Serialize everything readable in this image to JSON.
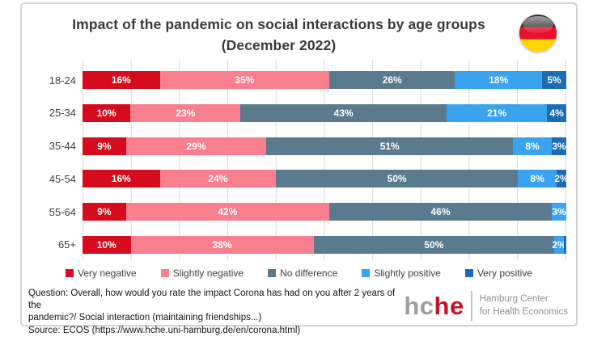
{
  "title": {
    "line1": "Impact of the pandemic on social interactions by age groups",
    "line2": "(December 2022)"
  },
  "flag": {
    "country": "Germany",
    "colors": {
      "black": "#2e2e2e",
      "red": "#e8112d",
      "gold": "#ffd500"
    }
  },
  "chart_data": {
    "type": "bar",
    "orientation": "horizontal",
    "stacked": true,
    "unit": "%",
    "x_range": [
      0,
      100
    ],
    "grid": "vertical gridlines every 10%",
    "legend_position": "bottom",
    "categories": [
      "18-24",
      "25-34",
      "35-44",
      "45-54",
      "55-64",
      "65+"
    ],
    "series": [
      {
        "name": "Very negative",
        "color": "#d60b1e",
        "values": [
          16,
          10,
          9,
          16,
          9,
          10
        ]
      },
      {
        "name": "Slightly negative",
        "color": "#f97f8e",
        "values": [
          35,
          23,
          29,
          24,
          42,
          38
        ]
      },
      {
        "name": "No difference",
        "color": "#5a7a8d",
        "values": [
          26,
          43,
          51,
          50,
          46,
          50
        ]
      },
      {
        "name": "Slightly positive",
        "color": "#3aa3ef",
        "values": [
          18,
          21,
          8,
          8,
          3,
          2
        ]
      },
      {
        "name": "Very positive",
        "color": "#1b6cb5",
        "values": [
          5,
          4,
          3,
          2,
          0,
          0.5
        ]
      }
    ],
    "data_labels": [
      [
        "16%",
        "35%",
        "26%",
        "18%",
        "5%"
      ],
      [
        "10%",
        "23%",
        "43%",
        "21%",
        "4%"
      ],
      [
        "9%",
        "29%",
        "51%",
        "8%",
        "3%"
      ],
      [
        "16%",
        "24%",
        "50%",
        "8%",
        "2%"
      ],
      [
        "9%",
        "42%",
        "46%",
        "3%",
        ""
      ],
      [
        "10%",
        "38%",
        "50%",
        "2%",
        ""
      ]
    ]
  },
  "legend": [
    {
      "label": "Very negative",
      "color": "#d60b1e"
    },
    {
      "label": "Slightly negative",
      "color": "#f97f8e"
    },
    {
      "label": "No difference",
      "color": "#5a7a8d"
    },
    {
      "label": "Slightly positive",
      "color": "#3aa3ef"
    },
    {
      "label": "Very positive",
      "color": "#1b6cb5"
    }
  ],
  "footer": {
    "question_line1": "Question: Overall, how would you rate the impact Corona has had on you after 2 years of the",
    "question_line2": "pandemic?/ Social interaction (maintaining friendships...)",
    "source": "Source: ECOS (https://www.hche.uni-hamburg.de/en/corona.html)"
  },
  "logo": {
    "word_gray": "hc",
    "word_red": "he",
    "org_line1": "Hamburg Center",
    "org_line2": "for Health Economics"
  }
}
